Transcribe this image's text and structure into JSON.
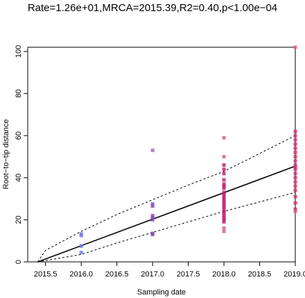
{
  "chart_data": {
    "type": "scatter",
    "title": "Rate=1.26e+01,MRCA=2015.39,R2=0.40,p<1.00e−04",
    "xlabel": "Sampling date",
    "ylabel": "Root−to−tip distance",
    "xlim": [
      2015.25,
      2019.0
    ],
    "ylim": [
      0,
      102
    ],
    "x_ticks": [
      "2015.5",
      "2016.0",
      "2016.5",
      "2017.0",
      "2017.5",
      "2018.0",
      "2018.5",
      "2019.0"
    ],
    "y_ticks": [
      "0",
      "20",
      "40",
      "60",
      "80",
      "100"
    ],
    "grid": false,
    "fit_line": {
      "x": [
        2015.39,
        2019.0
      ],
      "y": [
        0,
        45.5
      ]
    },
    "confidence_upper": [
      [
        2015.39,
        0
      ],
      [
        2015.5,
        5.5
      ],
      [
        2016.0,
        14.5
      ],
      [
        2016.5,
        22.5
      ],
      [
        2017.0,
        29.5
      ],
      [
        2017.5,
        36.5
      ],
      [
        2018.0,
        43
      ],
      [
        2018.5,
        51.5
      ],
      [
        2019.0,
        60
      ]
    ],
    "confidence_lower": [
      [
        2015.39,
        0
      ],
      [
        2016.0,
        3.5
      ],
      [
        2016.5,
        9
      ],
      [
        2017.0,
        14
      ],
      [
        2017.5,
        19
      ],
      [
        2018.0,
        24
      ],
      [
        2018.5,
        28.5
      ],
      [
        2019.0,
        33
      ]
    ],
    "points": [
      {
        "x": 2016.0,
        "y": 12.5,
        "color": "#6f72e0"
      },
      {
        "x": 2016.0,
        "y": 13.3,
        "color": "#6f72e0"
      },
      {
        "x": 2016.0,
        "y": 7.5,
        "color": "#6f72e0"
      },
      {
        "x": 2016.0,
        "y": 4.5,
        "color": "#6f72e0"
      },
      {
        "x": 2017.0,
        "y": 53,
        "color": "#9b5bd6"
      },
      {
        "x": 2017.0,
        "y": 27.5,
        "color": "#8a3fc0"
      },
      {
        "x": 2017.0,
        "y": 26.5,
        "color": "#8a3fc0"
      },
      {
        "x": 2017.0,
        "y": 22,
        "color": "#8a3fc0"
      },
      {
        "x": 2017.0,
        "y": 21,
        "color": "#8a3fc0"
      },
      {
        "x": 2017.0,
        "y": 20,
        "color": "#8a3fc0"
      },
      {
        "x": 2017.0,
        "y": 13.5,
        "color": "#8a3fc0"
      },
      {
        "x": 2017.0,
        "y": 13,
        "color": "#8a3fc0"
      },
      {
        "x": 2018.0,
        "y": 59,
        "color": "#d45a8c"
      },
      {
        "x": 2018.0,
        "y": 50,
        "color": "#d45a8c"
      },
      {
        "x": 2018.0,
        "y": 46,
        "color": "#c2186a"
      },
      {
        "x": 2018.0,
        "y": 44,
        "color": "#c2186a"
      },
      {
        "x": 2018.0,
        "y": 42,
        "color": "#c2186a"
      },
      {
        "x": 2018.0,
        "y": 39,
        "color": "#c2186a"
      },
      {
        "x": 2018.0,
        "y": 37,
        "color": "#c2186a"
      },
      {
        "x": 2018.0,
        "y": 36,
        "color": "#c2186a"
      },
      {
        "x": 2018.0,
        "y": 35,
        "color": "#c2186a"
      },
      {
        "x": 2018.0,
        "y": 33,
        "color": "#c2186a"
      },
      {
        "x": 2018.0,
        "y": 32,
        "color": "#c2186a"
      },
      {
        "x": 2018.0,
        "y": 31,
        "color": "#c2186a"
      },
      {
        "x": 2018.0,
        "y": 30,
        "color": "#c2186a"
      },
      {
        "x": 2018.0,
        "y": 29,
        "color": "#c2186a"
      },
      {
        "x": 2018.0,
        "y": 28,
        "color": "#c2186a"
      },
      {
        "x": 2018.0,
        "y": 27,
        "color": "#c2186a"
      },
      {
        "x": 2018.0,
        "y": 26,
        "color": "#c2186a"
      },
      {
        "x": 2018.0,
        "y": 25,
        "color": "#c2186a"
      },
      {
        "x": 2018.0,
        "y": 24,
        "color": "#c2186a"
      },
      {
        "x": 2018.0,
        "y": 23,
        "color": "#c2186a"
      },
      {
        "x": 2018.0,
        "y": 22,
        "color": "#c2186a"
      },
      {
        "x": 2018.0,
        "y": 21,
        "color": "#c2186a"
      },
      {
        "x": 2018.0,
        "y": 20,
        "color": "#c2186a"
      },
      {
        "x": 2018.0,
        "y": 19,
        "color": "#c2186a"
      },
      {
        "x": 2018.0,
        "y": 16,
        "color": "#d45a8c"
      },
      {
        "x": 2018.0,
        "y": 14.5,
        "color": "#d45a8c"
      },
      {
        "x": 2019.0,
        "y": 102,
        "color": "#e05a78"
      },
      {
        "x": 2019.0,
        "y": 62,
        "color": "#d2306e"
      },
      {
        "x": 2019.0,
        "y": 60,
        "color": "#d2306e"
      },
      {
        "x": 2019.0,
        "y": 58,
        "color": "#d2306e"
      },
      {
        "x": 2019.0,
        "y": 56,
        "color": "#d2306e"
      },
      {
        "x": 2019.0,
        "y": 54,
        "color": "#d2306e"
      },
      {
        "x": 2019.0,
        "y": 52,
        "color": "#d2306e"
      },
      {
        "x": 2019.0,
        "y": 50,
        "color": "#d2306e"
      },
      {
        "x": 2019.0,
        "y": 48,
        "color": "#d2306e"
      },
      {
        "x": 2019.0,
        "y": 46,
        "color": "#d2306e"
      },
      {
        "x": 2019.0,
        "y": 45,
        "color": "#d2306e"
      },
      {
        "x": 2019.0,
        "y": 44,
        "color": "#d2306e"
      },
      {
        "x": 2019.0,
        "y": 42,
        "color": "#d2306e"
      },
      {
        "x": 2019.0,
        "y": 40,
        "color": "#d2306e"
      },
      {
        "x": 2019.0,
        "y": 38,
        "color": "#d2306e"
      },
      {
        "x": 2019.0,
        "y": 36,
        "color": "#d2306e"
      },
      {
        "x": 2019.0,
        "y": 34,
        "color": "#d2306e"
      },
      {
        "x": 2019.0,
        "y": 31,
        "color": "#d2306e"
      },
      {
        "x": 2019.0,
        "y": 28,
        "color": "#d2306e"
      },
      {
        "x": 2019.0,
        "y": 25,
        "color": "#d2306e"
      },
      {
        "x": 2019.0,
        "y": 24,
        "color": "#e05a78"
      }
    ]
  }
}
